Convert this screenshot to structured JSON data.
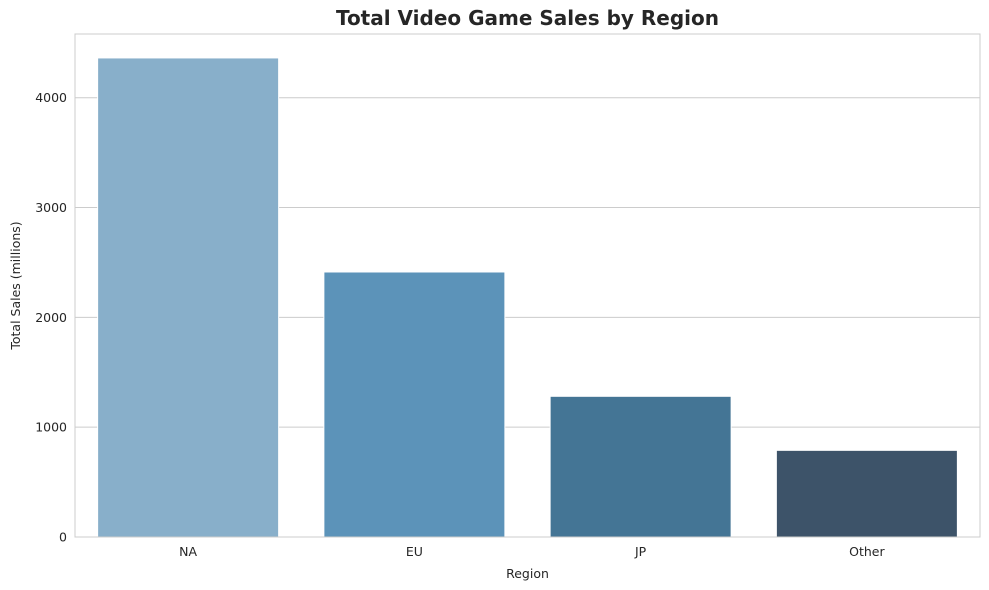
{
  "chart_data": {
    "type": "bar",
    "title": "Total Video Game Sales by Region",
    "xlabel": "Region",
    "ylabel": "Total Sales (millions)",
    "categories": [
      "NA",
      "EU",
      "JP",
      "Other"
    ],
    "values": [
      4362,
      2413,
      1281,
      789
    ],
    "bar_colors": [
      "#88afca",
      "#5c93b9",
      "#447595",
      "#3d5369"
    ],
    "ylim": [
      0,
      4580
    ],
    "yticks": [
      0,
      1000,
      2000,
      3000,
      4000
    ],
    "ytick_labels": [
      "0",
      "1000",
      "2000",
      "3000",
      "4000"
    ],
    "grid": "y-axis",
    "legend": "none",
    "colors": {
      "grid": "#cccccc",
      "frame": "#cccccc",
      "bar_edge": "#ffffff",
      "text": "#262626"
    }
  }
}
